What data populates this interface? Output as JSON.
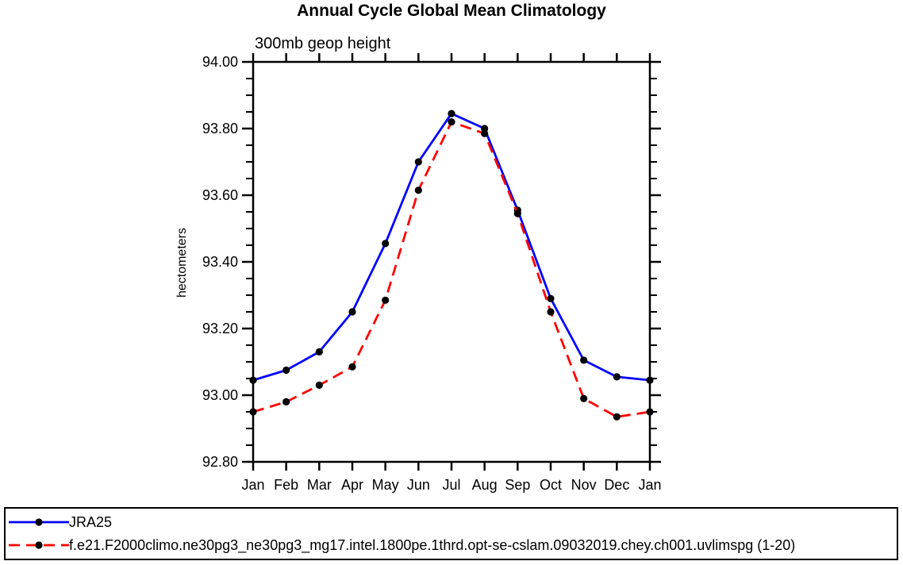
{
  "chart_data": {
    "type": "line",
    "title": "Annual Cycle Global Mean Climatology",
    "subtitle": "300mb geop height",
    "ylabel": "hectometers",
    "xlabel": "",
    "categories": [
      "Jan",
      "Feb",
      "Mar",
      "Apr",
      "May",
      "Jun",
      "Jul",
      "Aug",
      "Sep",
      "Oct",
      "Nov",
      "Dec",
      "Jan"
    ],
    "series": [
      {
        "name": "JRA25",
        "color": "#0000ff",
        "style": "solid",
        "marker": "filled-circle",
        "marker_color": "#000000",
        "values": [
          93.045,
          93.075,
          93.13,
          93.25,
          93.455,
          93.7,
          93.845,
          93.8,
          93.555,
          93.29,
          93.105,
          93.055,
          93.045
        ]
      },
      {
        "name": "f.e21.F2000climo.ne30pg3_ne30pg3_mg17.intel.1800pe.1thrd.opt-se-cslam.09032019.chey.ch001.uvlimspg (1-20)",
        "color": "#ff0000",
        "style": "dashed",
        "marker": "filled-circle",
        "marker_color": "#000000",
        "values": [
          92.95,
          92.98,
          93.03,
          93.085,
          93.285,
          93.615,
          93.82,
          93.785,
          93.545,
          93.25,
          92.99,
          92.935,
          92.95
        ]
      }
    ],
    "ylim": [
      92.8,
      94.0
    ],
    "ytick_major": 0.2,
    "ytick_minor": 0.05,
    "ytick_decimals": 2,
    "grid": false,
    "legend_position": "bottom-outside-box",
    "axis_color": "#000000"
  }
}
